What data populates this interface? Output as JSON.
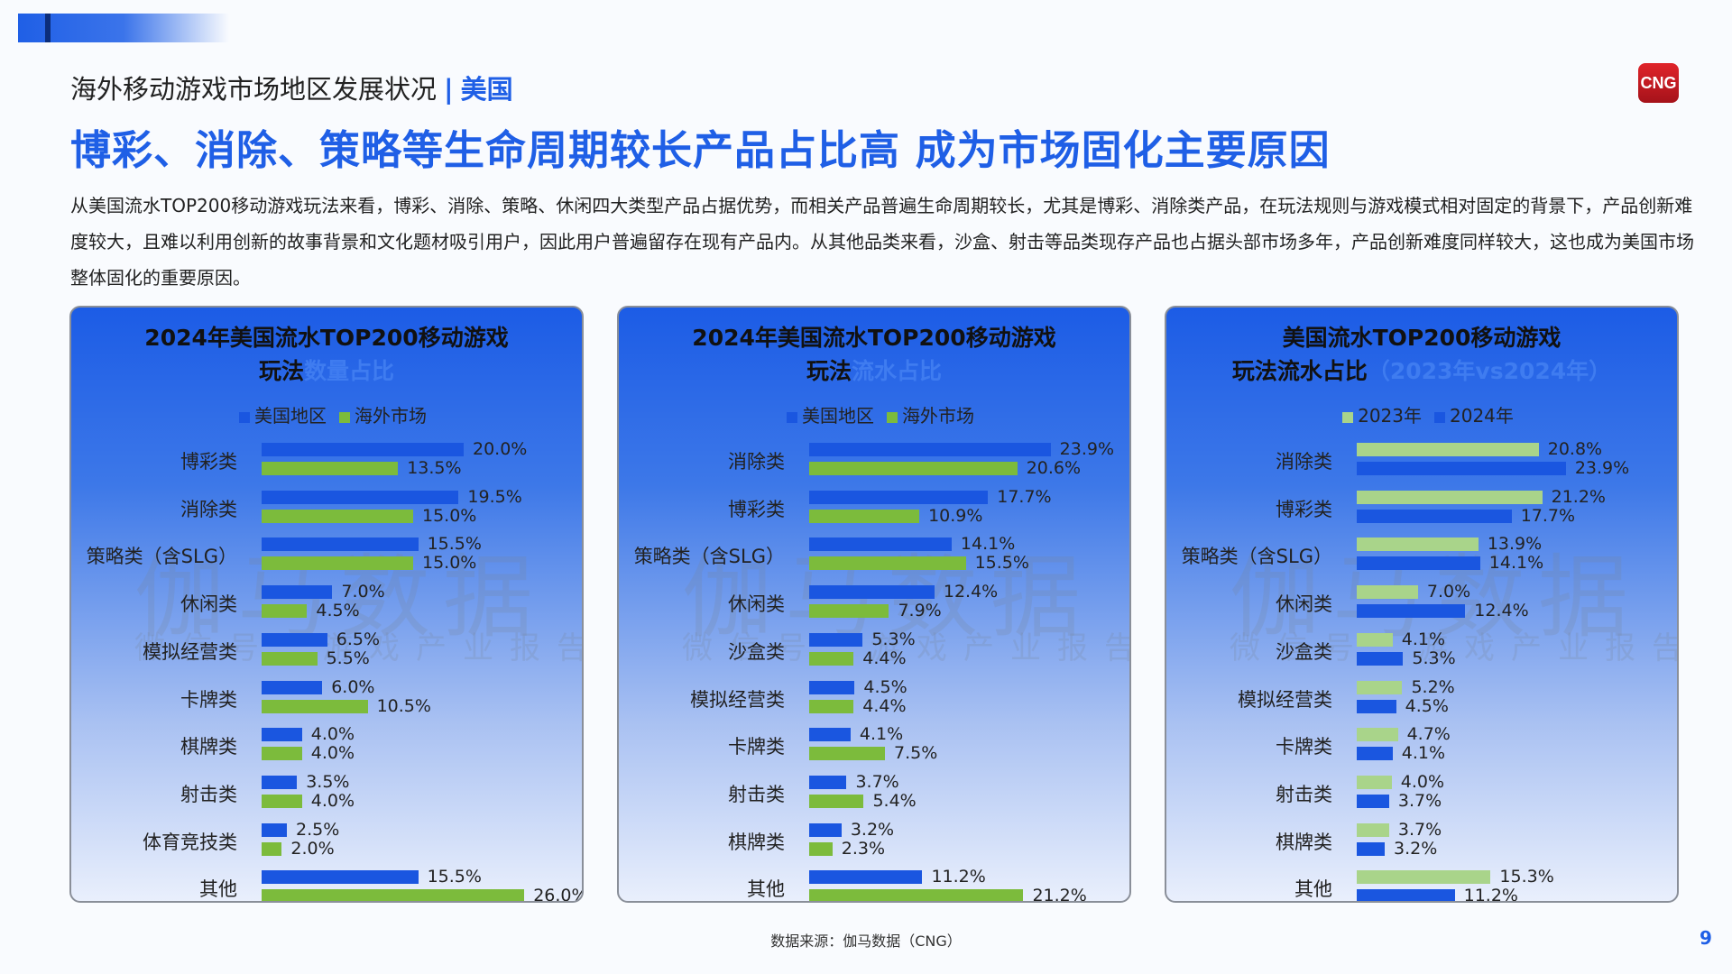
{
  "header": {
    "section": "海外移动游戏市场地区发展状况",
    "separator": "|",
    "region": "美国",
    "title": "博彩、消除、策略等生命周期较长产品占比高 成为市场固化主要原因",
    "logo": "CNG"
  },
  "body_text": "从美国流水TOP200移动游戏玩法来看，博彩、消除、策略、休闲四大类型产品占据优势，而相关产品普遍生命周期较长，尤其是博彩、消除类产品，在玩法规则与游戏模式相对固定的背景下，产品创新难度较大，且难以利用创新的故事背景和文化题材吸引用户，因此用户普遍留存在现有产品内。从其他品类来看，沙盒、射击等品类现存产品也占据头部市场多年，产品创新难度同样较大，这也成为美国市场整体固化的重要原因。",
  "watermark": {
    "main": "伽马数据",
    "sub": "微信号：游戏产业报告"
  },
  "footer": {
    "source": "数据来源：伽马数据（CNG）",
    "page": "9"
  },
  "colors": {
    "accent": "#1f5fe6",
    "blue_bar": "#1a56e0",
    "green_bar": "#7cbb3c",
    "light_green_bar": "#a9d48a"
  },
  "chart_data": [
    {
      "type": "bar",
      "orientation": "horizontal",
      "title_line1": "2024年美国流水TOP200移动游戏",
      "title_line2": "玩法",
      "title_highlight": "数量占比",
      "categories": [
        "博彩类",
        "消除类",
        "策略类（含SLG）",
        "休闲类",
        "模拟经营类",
        "卡牌类",
        "棋牌类",
        "射击类",
        "体育竞技类",
        "其他"
      ],
      "series": [
        {
          "name": "美国地区",
          "color": "#1a56e0",
          "values": [
            20.0,
            19.5,
            15.5,
            7.0,
            6.5,
            6.0,
            4.0,
            3.5,
            2.5,
            15.5
          ]
        },
        {
          "name": "海外市场",
          "color": "#7cbb3c",
          "values": [
            13.5,
            15.0,
            15.0,
            4.5,
            5.5,
            10.5,
            4.0,
            4.0,
            2.0,
            26.0
          ]
        }
      ],
      "unit": "%",
      "legend": "top"
    },
    {
      "type": "bar",
      "orientation": "horizontal",
      "title_line1": "2024年美国流水TOP200移动游戏",
      "title_line2": "玩法",
      "title_highlight": "流水占比",
      "categories": [
        "消除类",
        "博彩类",
        "策略类（含SLG）",
        "休闲类",
        "沙盒类",
        "模拟经营类",
        "卡牌类",
        "射击类",
        "棋牌类",
        "其他"
      ],
      "series": [
        {
          "name": "美国地区",
          "color": "#1a56e0",
          "values": [
            23.9,
            17.7,
            14.1,
            12.4,
            5.3,
            4.5,
            4.1,
            3.7,
            3.2,
            11.2
          ]
        },
        {
          "name": "海外市场",
          "color": "#7cbb3c",
          "values": [
            20.6,
            10.9,
            15.5,
            7.9,
            4.4,
            4.4,
            7.5,
            5.4,
            2.3,
            21.2
          ]
        }
      ],
      "unit": "%",
      "legend": "top"
    },
    {
      "type": "bar",
      "orientation": "horizontal",
      "title_line1": "美国流水TOP200移动游戏",
      "title_line2": "玩法流水占比",
      "title_highlight": "（2023年vs2024年）",
      "categories": [
        "消除类",
        "博彩类",
        "策略类（含SLG）",
        "休闲类",
        "沙盒类",
        "模拟经营类",
        "卡牌类",
        "射击类",
        "棋牌类",
        "其他"
      ],
      "series": [
        {
          "name": "2023年",
          "color": "#a9d48a",
          "values": [
            20.8,
            21.2,
            13.9,
            7.0,
            4.1,
            5.2,
            4.7,
            4.0,
            3.7,
            15.3
          ]
        },
        {
          "name": "2024年",
          "color": "#1a56e0",
          "values": [
            23.9,
            17.7,
            14.1,
            12.4,
            5.3,
            4.5,
            4.1,
            3.7,
            3.2,
            11.2
          ]
        }
      ],
      "unit": "%",
      "legend": "top"
    }
  ]
}
